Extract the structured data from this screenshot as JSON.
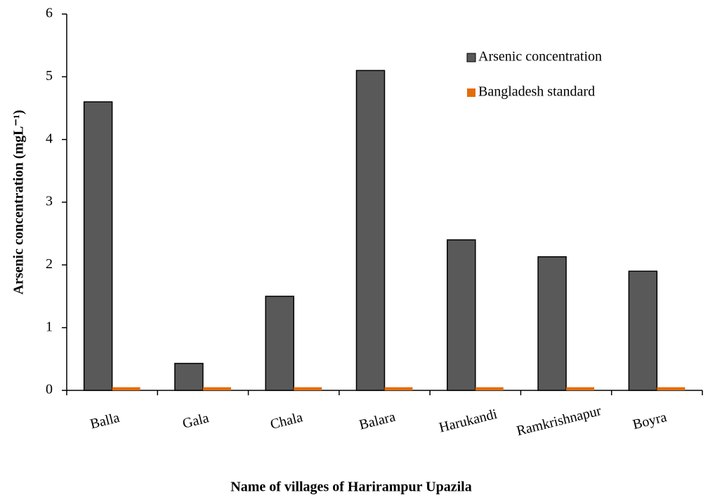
{
  "chart_data": {
    "type": "bar",
    "x_label": "Name of villages of Harirampur Upazila",
    "y_label": "Arsenic concentration (mgL⁻¹)",
    "categories": [
      "Balla",
      "Gala",
      "Chala",
      "Balara",
      "Harukandi",
      "Ramkrishnapur",
      "Boyra"
    ],
    "series": [
      {
        "name": "Arsenic concentration",
        "color": "#595959",
        "values": [
          4.6,
          0.43,
          1.5,
          5.1,
          2.4,
          2.13,
          1.9
        ]
      },
      {
        "name": "Bangladesh standard",
        "color": "#e46c0a",
        "values": [
          0.05,
          0.05,
          0.05,
          0.05,
          0.05,
          0.05,
          0.05
        ]
      }
    ],
    "ylim": [
      0,
      6
    ],
    "yticks": [
      0,
      1,
      2,
      3,
      4,
      5,
      6
    ]
  }
}
